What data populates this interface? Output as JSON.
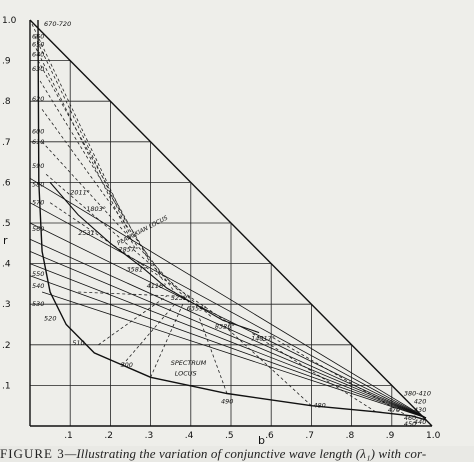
{
  "chart_data": {
    "type": "diagram",
    "xlabel": "b",
    "ylabel": "r",
    "x_ticks": [
      ".1",
      ".2",
      ".3",
      ".4",
      ".5",
      ".6",
      ".7",
      ".8",
      ".9",
      "1.0"
    ],
    "y_ticks": [
      ".1",
      ".2",
      ".3",
      ".4",
      ".5",
      ".6",
      ".7",
      ".8",
      ".9",
      "1.0"
    ],
    "xlim": [
      0,
      1.0
    ],
    "ylim": [
      0,
      1.0
    ],
    "grid": true,
    "curves": [
      {
        "name": "SPECTRUM LOCUS",
        "points": [
          [
            0.02,
            1.0
          ],
          [
            0.022,
            0.6
          ],
          [
            0.03,
            0.43
          ],
          [
            0.05,
            0.33
          ],
          [
            0.09,
            0.25
          ],
          [
            0.16,
            0.18
          ],
          [
            0.3,
            0.12
          ],
          [
            0.49,
            0.08
          ],
          [
            0.7,
            0.05
          ],
          [
            0.86,
            0.035
          ],
          [
            0.95,
            0.025
          ],
          [
            0.985,
            0.015
          ]
        ]
      },
      {
        "name": "PLANCKIAN LOCUS",
        "points": [
          [
            0.05,
            0.6
          ],
          [
            0.12,
            0.52
          ],
          [
            0.2,
            0.45
          ],
          [
            0.28,
            0.39
          ],
          [
            0.34,
            0.34
          ],
          [
            0.41,
            0.3
          ],
          [
            0.48,
            0.26
          ],
          [
            0.57,
            0.23
          ]
        ]
      }
    ],
    "wavelength_labels": [
      "670-720",
      "660",
      "650",
      "640",
      "630",
      "620",
      "610",
      "600",
      "590",
      "580",
      "570",
      "560",
      "550",
      "540",
      "530",
      "520",
      "510",
      "500",
      "490",
      "480",
      "470",
      "460",
      "450",
      "440",
      "430",
      "420",
      "380-410"
    ],
    "temperature_labels": [
      "1803°",
      "2011°",
      "2531°",
      "2857°",
      "3581°",
      "4116°",
      "5232°",
      "6359°",
      "8326°",
      "14817°"
    ],
    "locus_labels": [
      "PLANCKIAN LOCUS",
      "SPECTRUM LOCUS"
    ],
    "caption_label": "FIGURE 3",
    "caption_text": "—Illustrating the variation of conjunctive wave length (λ₁) with cor-"
  }
}
